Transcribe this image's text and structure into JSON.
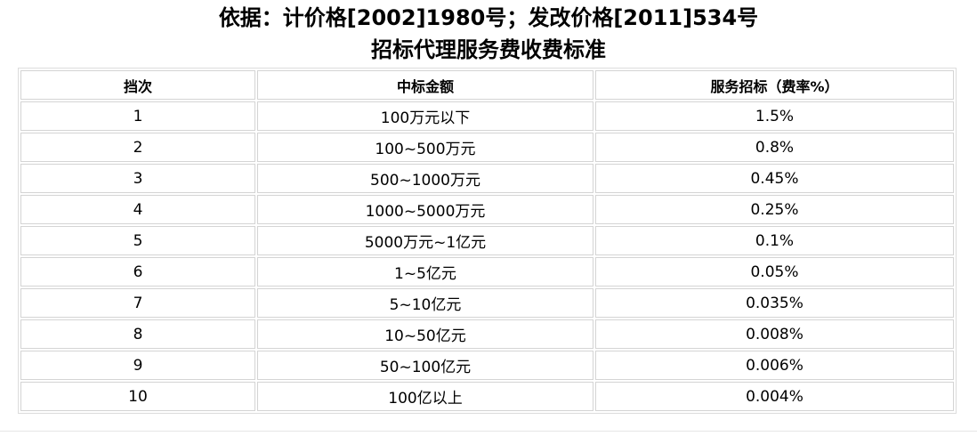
{
  "title_line1": "依据：计价格[2002]1980号；发改价格[2011]534号",
  "title_line2": "招标代理服务费收费标准",
  "table": {
    "headers": [
      "挡次",
      "中标金额",
      "服务招标（费率%）"
    ],
    "rows": [
      [
        "1",
        "100万元以下",
        "1.5%"
      ],
      [
        "2",
        "100~500万元",
        "0.8%"
      ],
      [
        "3",
        "500~1000万元",
        "0.45%"
      ],
      [
        "4",
        "1000~5000万元",
        "0.25%"
      ],
      [
        "5",
        "5000万元~1亿元",
        "0.1%"
      ],
      [
        "6",
        "1~5亿元",
        "0.05%"
      ],
      [
        "7",
        "5~10亿元",
        "0.035%"
      ],
      [
        "8",
        "10~50亿元",
        "0.008%"
      ],
      [
        "9",
        "50~100亿元",
        "0.006%"
      ],
      [
        "10",
        "100亿以上",
        "0.004%"
      ]
    ]
  }
}
